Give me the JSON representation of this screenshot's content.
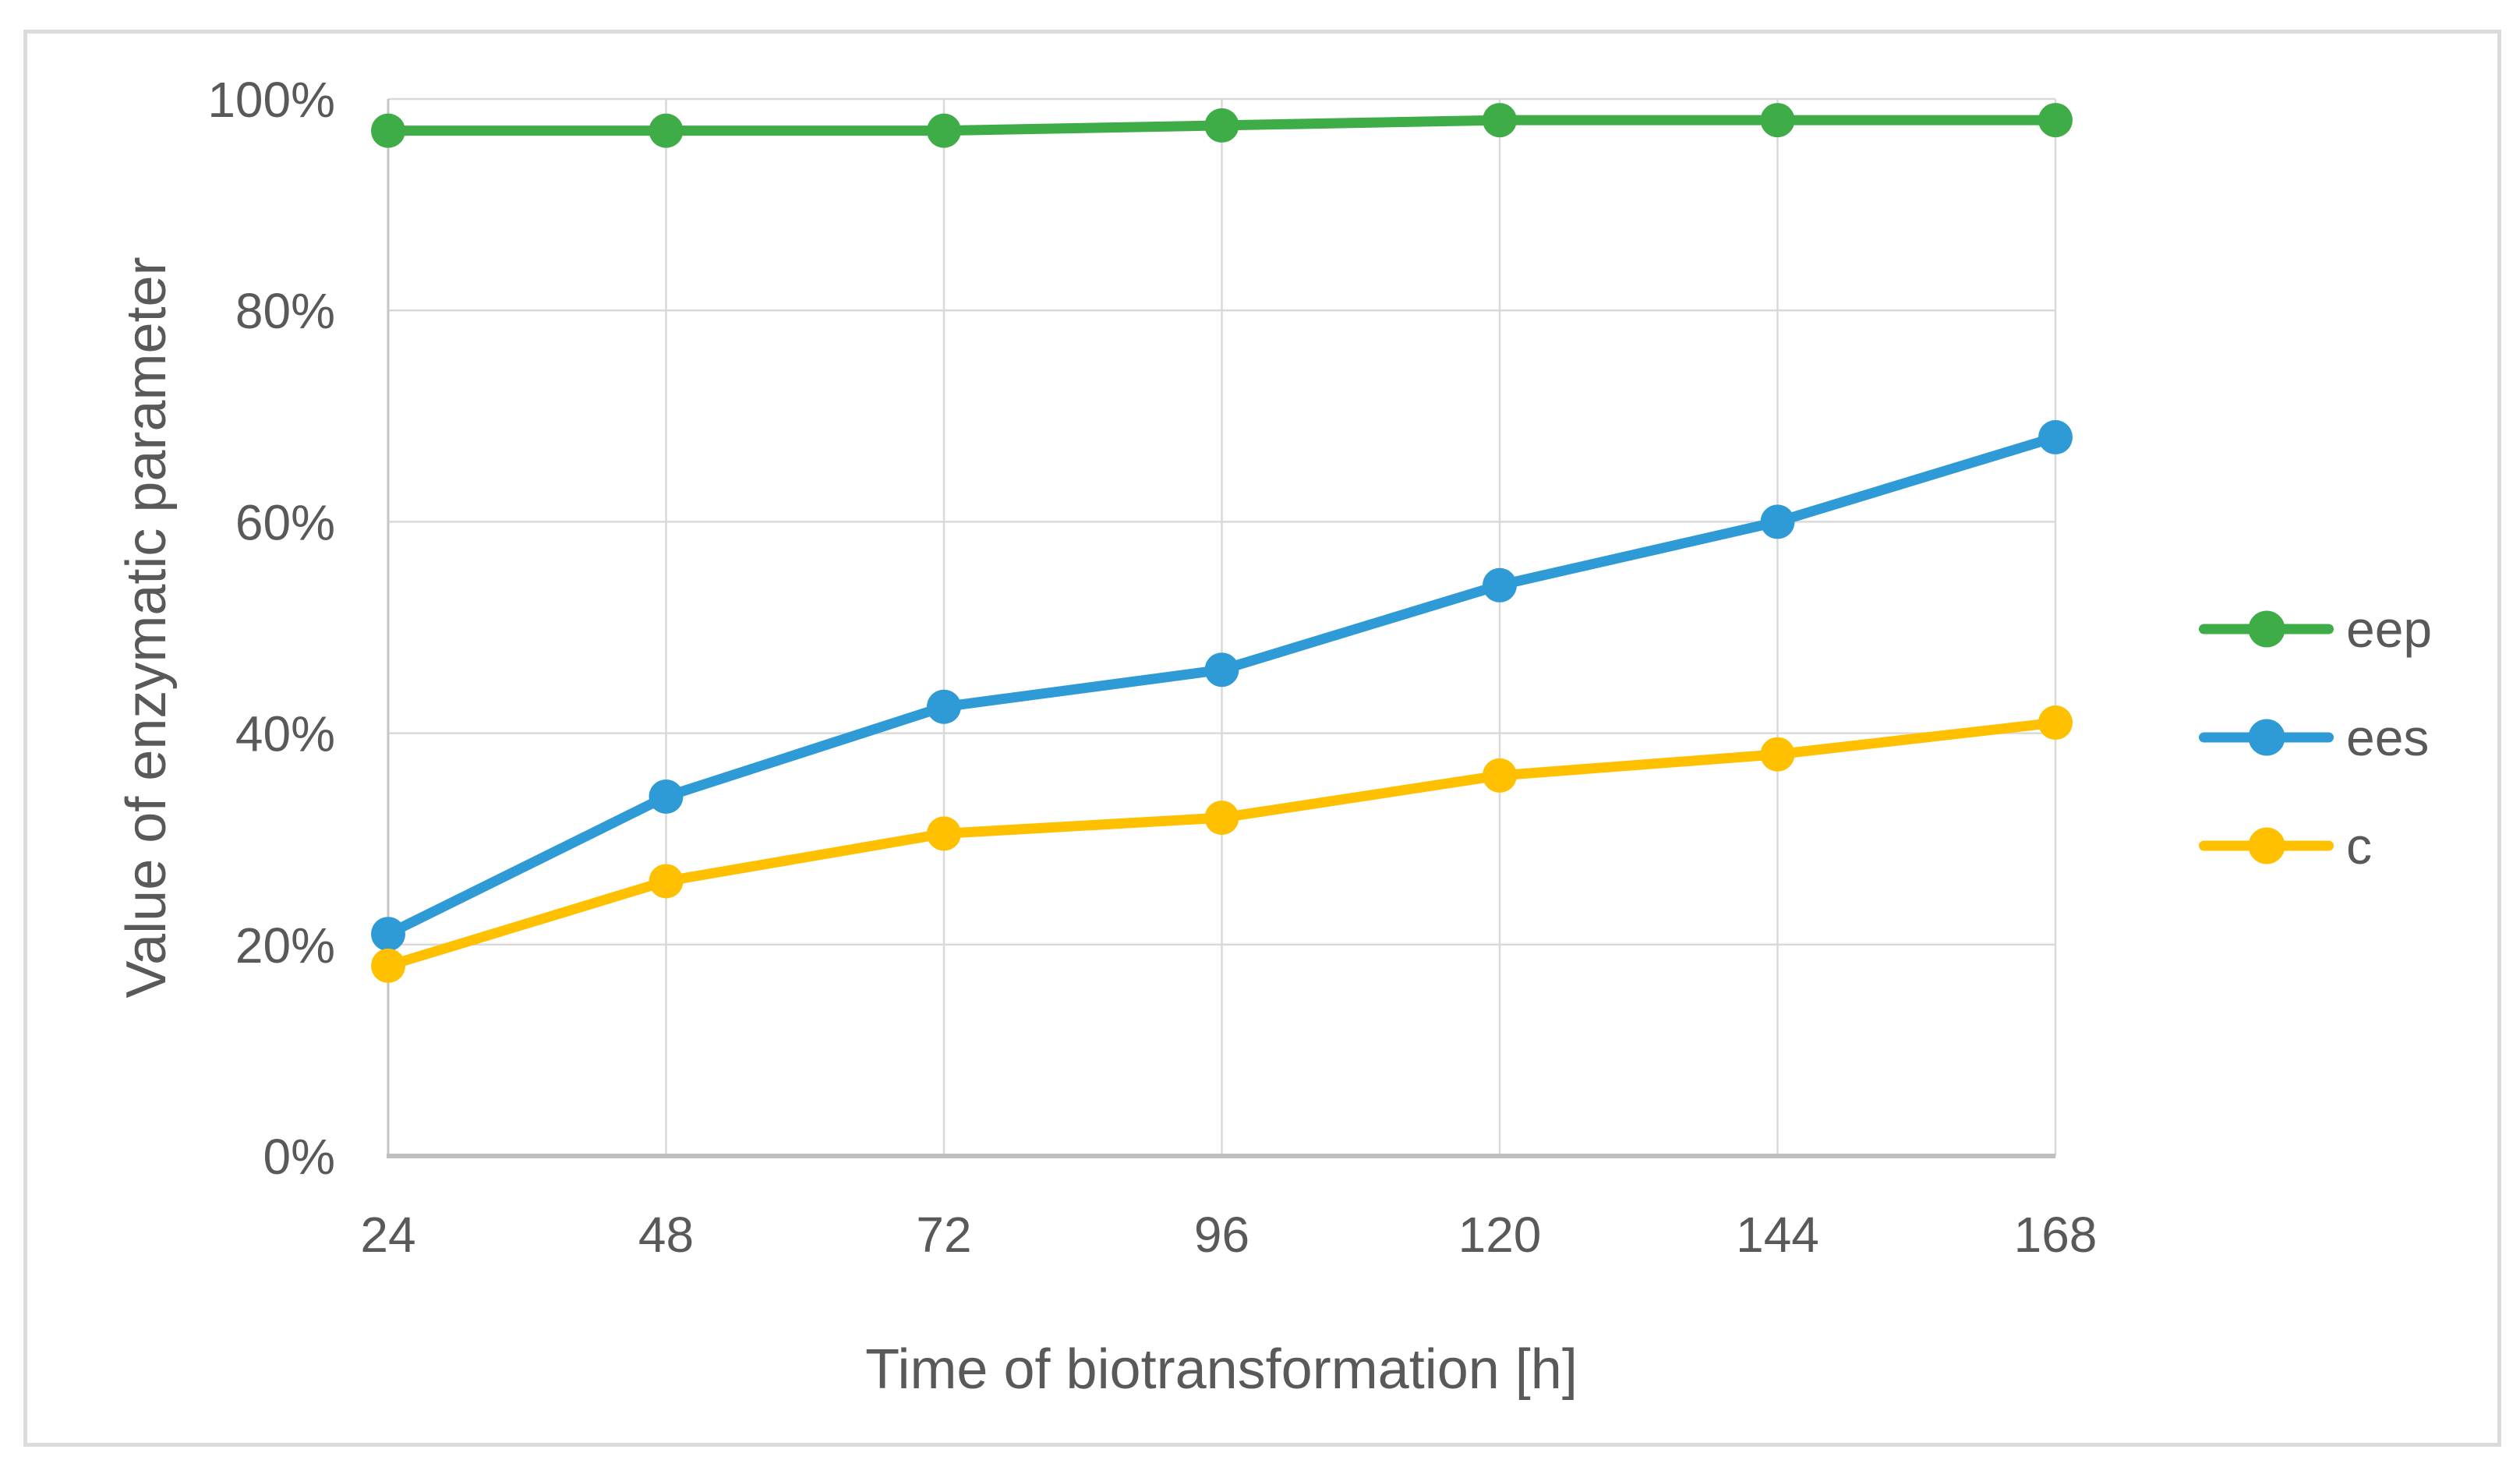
{
  "figure": {
    "background": "#FFFFFF",
    "border_color": "#DBDBDB"
  },
  "chart_data": {
    "type": "line",
    "title": "",
    "xlabel": "Time of biotransformation [h]",
    "ylabel": "Value of enzymatic parameter",
    "x": [
      24,
      48,
      72,
      96,
      120,
      144,
      168
    ],
    "x_tick_labels": [
      "24",
      "48",
      "72",
      "96",
      "120",
      "144",
      "168"
    ],
    "y_ticks": [
      0,
      20,
      40,
      60,
      80,
      100
    ],
    "y_tick_labels": [
      "0%",
      "20%",
      "40%",
      "60%",
      "80%",
      "100%"
    ],
    "ylim": [
      0,
      100
    ],
    "grid": true,
    "legend_position": "right",
    "series": [
      {
        "name": "eep",
        "color": "#3EAC47",
        "values": [
          97,
          97,
          97,
          97.5,
          98,
          98,
          98
        ]
      },
      {
        "name": "ees",
        "color": "#2E9BD6",
        "values": [
          21,
          34,
          42.5,
          46,
          54,
          60,
          68
        ]
      },
      {
        "name": "c",
        "color": "#FFC000",
        "values": [
          18,
          26,
          30.5,
          32,
          36,
          38,
          41
        ]
      }
    ],
    "colors": {
      "grid": "#D9D9D9",
      "axis": "#BFBFBF",
      "text": "#595959"
    }
  }
}
